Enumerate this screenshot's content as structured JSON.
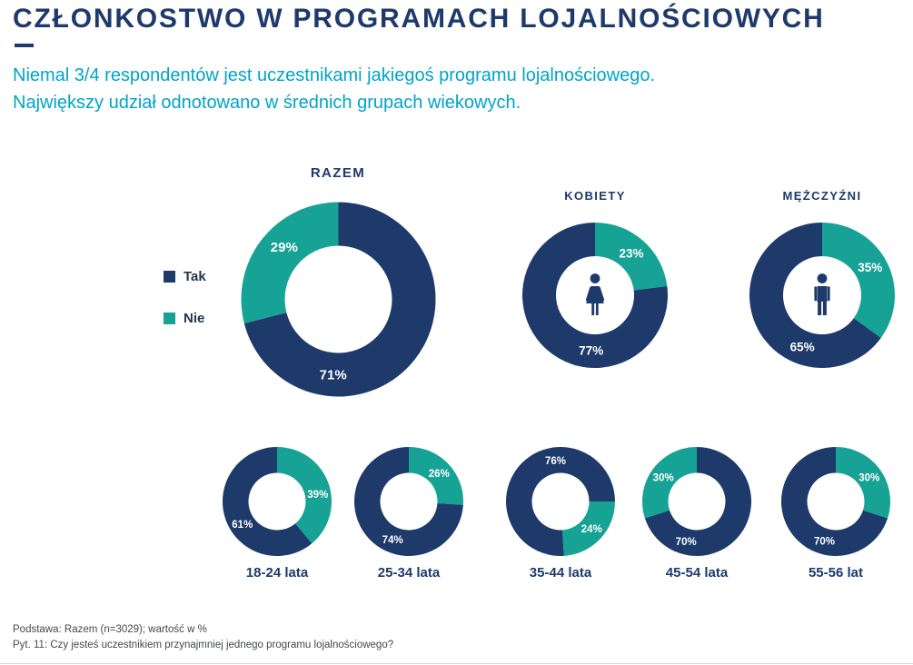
{
  "page": {
    "title": "CZŁONKOSTWO W PROGRAMACH LOJALNOŚCIOWYCH",
    "subtitle_line1": "Niemal 3/4 respondentów jest uczestnikami jakiegoś programu lojalnościowego.",
    "subtitle_line2": "Największy udział odnotowano w średnich grupach wiekowych.",
    "footer_line1": "Podstawa: Razem (n=3029); wartość w %",
    "footer_line2": "Pyt. 11: Czy jesteś uczestnikiem przynajmniej jednego programu lojalnościowego?"
  },
  "legend": {
    "tak": "Tak",
    "nie": "Nie"
  },
  "colors": {
    "navy": "#1d3a6b",
    "teal": "#16a294",
    "subtitle_cyan": "#00a4c7",
    "text_dark": "#24344d",
    "footer_gray": "#44484e"
  },
  "chart_data": [
    {
      "type": "pie",
      "title": "RAZEM",
      "labels": [
        "Tak",
        "Nie"
      ],
      "values": [
        71,
        29
      ],
      "unit": "%",
      "size": "large",
      "icon": null,
      "layout": {
        "nie_start_deg": 255.6,
        "tak_label_deg": 184,
        "nie_label_deg": 314,
        "legend_position": "left"
      }
    },
    {
      "type": "pie",
      "title": "KOBIETY",
      "labels": [
        "Tak",
        "Nie"
      ],
      "values": [
        77,
        23
      ],
      "unit": "%",
      "size": "medium",
      "icon": "woman-icon",
      "layout": {
        "nie_start_deg": 0,
        "tak_label_deg": 184,
        "nie_label_deg": 41
      }
    },
    {
      "type": "pie",
      "title": "MĘŻCZYŹNI",
      "labels": [
        "Tak",
        "Nie"
      ],
      "values": [
        65,
        35
      ],
      "unit": "%",
      "size": "medium",
      "icon": "man-icon",
      "layout": {
        "nie_start_deg": 0,
        "tak_label_deg": 201,
        "nie_label_deg": 60
      }
    },
    {
      "type": "pie",
      "title": "18-24 lata",
      "labels": [
        "Tak",
        "Nie"
      ],
      "values": [
        61,
        39
      ],
      "unit": "%",
      "size": "small",
      "icon": null,
      "layout": {
        "nie_start_deg": 0,
        "tak_label_deg": 237,
        "nie_label_deg": 80
      }
    },
    {
      "type": "pie",
      "title": "25-34 lata",
      "labels": [
        "Tak",
        "Nie"
      ],
      "values": [
        74,
        26
      ],
      "unit": "%",
      "size": "small",
      "icon": null,
      "layout": {
        "nie_start_deg": 0,
        "tak_label_deg": 203,
        "nie_label_deg": 47
      }
    },
    {
      "type": "pie",
      "title": "35-44 lata",
      "labels": [
        "Tak",
        "Nie"
      ],
      "values": [
        76,
        24
      ],
      "unit": "%",
      "size": "small",
      "icon": null,
      "layout": {
        "nie_start_deg": 90,
        "tak_label_deg": 353,
        "nie_label_deg": 131
      }
    },
    {
      "type": "pie",
      "title": "45-54 lata",
      "labels": [
        "Tak",
        "Nie"
      ],
      "values": [
        70,
        30
      ],
      "unit": "%",
      "size": "small",
      "icon": null,
      "layout": {
        "nie_start_deg": 252,
        "tak_label_deg": 195,
        "nie_label_deg": 306
      }
    },
    {
      "type": "pie",
      "title": "55-56 lat",
      "labels": [
        "Tak",
        "Nie"
      ],
      "values": [
        70,
        30
      ],
      "unit": "%",
      "size": "small",
      "icon": null,
      "layout": {
        "nie_start_deg": 0,
        "tak_label_deg": 196,
        "nie_label_deg": 54
      }
    }
  ]
}
